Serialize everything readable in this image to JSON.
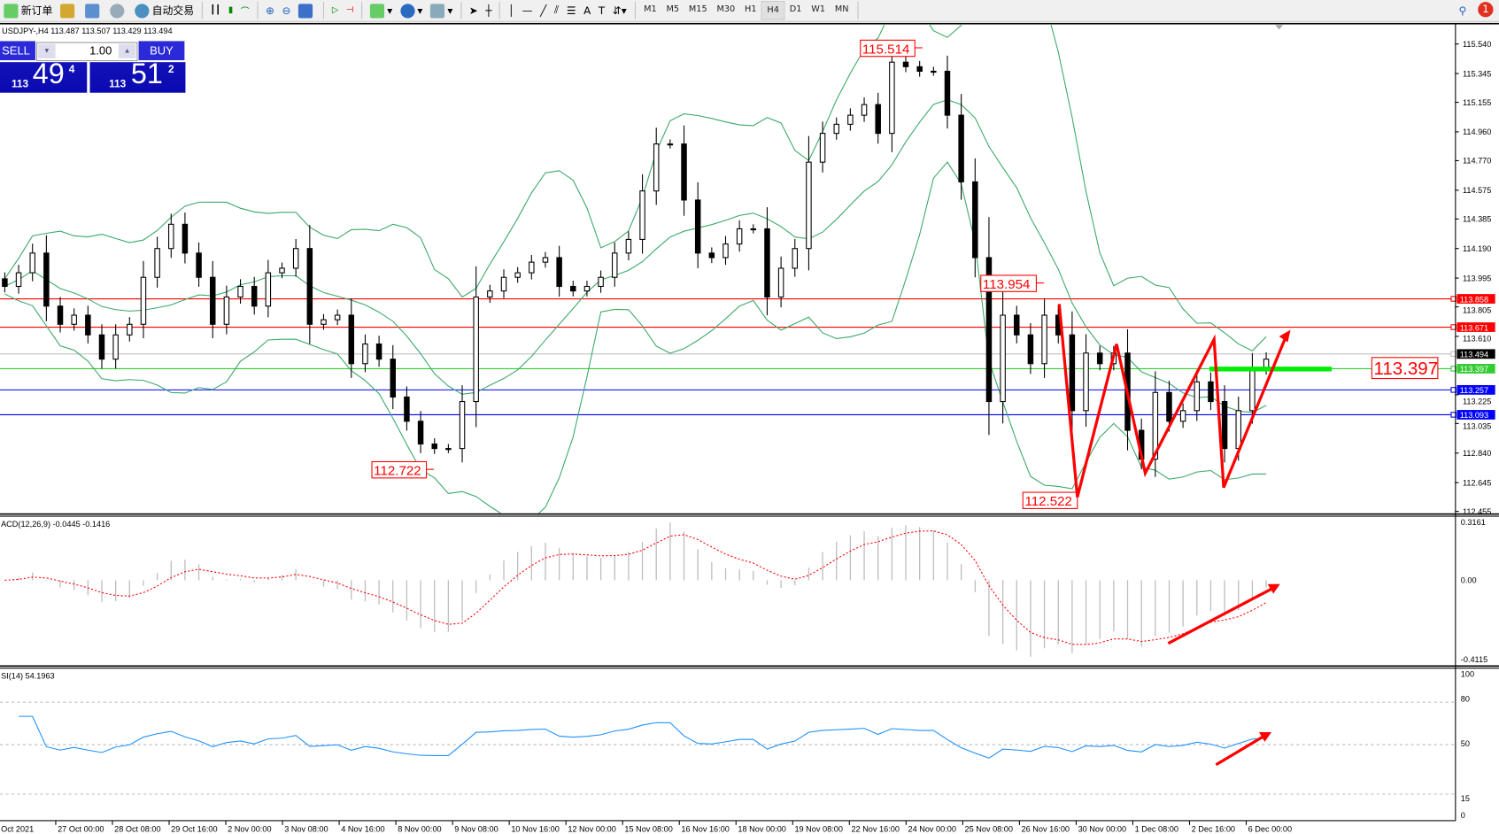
{
  "toolbar": {
    "new_order": "新订单",
    "auto_trading": "自动交易",
    "timeframes": [
      "M1",
      "M5",
      "M15",
      "M30",
      "H1",
      "H4",
      "D1",
      "W1",
      "MN"
    ],
    "active_timeframe": "H4",
    "notification_count": "1"
  },
  "chart": {
    "header": "USDJPY-,H4  113.487 113.507 113.429 113.494",
    "colors": {
      "bull": "#ffffff",
      "bear": "#000000",
      "bands": "#3aa868",
      "macd_hist": "#bdbdbd",
      "signal": "#ff0000",
      "rsi": "#1e90ff",
      "annot": "#ff0000",
      "green_level": "#00ee00"
    },
    "closes": [
      113.94,
      114.03,
      114.16,
      113.81,
      113.69,
      113.75,
      113.62,
      113.46,
      113.62,
      113.69,
      114.0,
      114.19,
      114.35,
      114.16,
      114.0,
      113.69,
      113.87,
      113.94,
      113.81,
      114.03,
      114.06,
      114.19,
      113.69,
      113.72,
      113.75,
      113.43,
      113.56,
      113.46,
      113.21,
      113.05,
      112.9,
      112.87,
      112.87,
      113.18,
      113.87,
      113.91,
      114.0,
      114.03,
      114.1,
      114.13,
      113.94,
      113.91,
      113.94,
      114.0,
      114.16,
      114.25,
      114.57,
      114.88,
      114.88,
      114.51,
      114.16,
      114.13,
      114.22,
      114.32,
      114.32,
      113.87,
      114.06,
      114.19,
      114.76,
      114.95,
      115.01,
      115.07,
      115.14,
      114.95,
      115.42,
      115.39,
      115.36,
      115.36,
      115.07,
      114.63,
      114.13,
      113.18,
      113.75,
      113.62,
      113.43,
      113.75,
      113.62,
      113.12,
      113.5,
      113.43,
      113.5,
      112.99,
      112.8,
      113.24,
      113.05,
      113.12,
      113.31,
      113.18,
      112.87,
      113.12,
      113.4,
      113.46
    ],
    "price_range": [
      112.455,
      115.54
    ],
    "price_ticks": [
      "115.540",
      "115.345",
      "115.155",
      "114.960",
      "114.770",
      "114.575",
      "114.385",
      "114.190",
      "113.995",
      "113.805",
      "113.610",
      "113.225",
      "113.035",
      "112.840",
      "112.645",
      "112.455"
    ],
    "levels": [
      {
        "price": 113.858,
        "label": "113.858",
        "color": "#ff0000"
      },
      {
        "price": 113.671,
        "label": "113.671",
        "color": "#ff0000"
      },
      {
        "price": 113.494,
        "label": "113.494",
        "color": "#000000",
        "line": "#c0c0c0"
      },
      {
        "price": 113.397,
        "label": "113.397",
        "color": "#33cc33"
      },
      {
        "price": 113.257,
        "label": "113.257",
        "color": "#0000ff"
      },
      {
        "price": 113.093,
        "label": "113.093",
        "color": "#0000ff"
      }
    ],
    "annotations": [
      "115.514",
      "113.954",
      "112.722",
      "112.522",
      "113.397"
    ]
  },
  "trade_panel": {
    "sell": "SELL",
    "buy": "BUY",
    "lot": "1.00",
    "bid": {
      "prefix": "113",
      "big": "49",
      "sup": "4"
    },
    "ask": {
      "prefix": "113",
      "big": "51",
      "sup": "2"
    }
  },
  "macd": {
    "label": "ACD(12,26,9) -0.0445 -0.1416",
    "ticks": [
      "0.3161",
      "0.00",
      "-0.4115"
    ]
  },
  "rsi": {
    "label": "SI(14) 54.1963",
    "ticks": [
      "100",
      "80",
      "50",
      "15",
      "0"
    ]
  },
  "time_axis": [
    "Oct 2021",
    "27 Oct 00:00",
    "28 Oct 08:00",
    "29 Oct 16:00",
    "2 Nov 00:00",
    "3 Nov 08:00",
    "4 Nov 16:00",
    "8 Nov 00:00",
    "9 Nov 08:00",
    "10 Nov 16:00",
    "12 Nov 00:00",
    "15 Nov 08:00",
    "16 Nov 16:00",
    "18 Nov 00:00",
    "19 Nov 08:00",
    "22 Nov 16:00",
    "24 Nov 00:00",
    "25 Nov 08:00",
    "26 Nov 16:00",
    "30 Nov 00:00",
    "1 Dec 08:00",
    "2 Dec 16:00",
    "6 Dec 00:00"
  ]
}
